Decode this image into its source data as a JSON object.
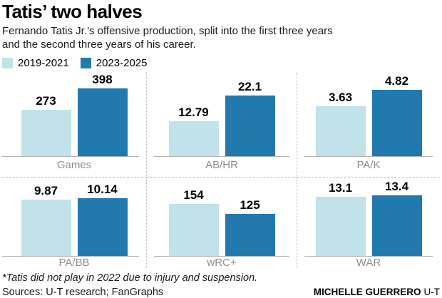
{
  "title": "Tatis’ two halves",
  "subtitle_line1": "Fernando Tatis Jr.’s offensive production, split into the first three years",
  "subtitle_line2": "and the second three years of his career.",
  "legend": [
    {
      "label": "2019-2021",
      "color": "#c0e2e8"
    },
    {
      "label": "2023-2025",
      "color": "#2179ae"
    }
  ],
  "colors": {
    "series1": "#c0e2e8",
    "series2": "#2179ae",
    "axis_line": "#b3b3b3",
    "category_label": "#8c8c8c",
    "divider": "#b8b8b8"
  },
  "chart_data": {
    "type": "bar",
    "layout": "2 rows x 3 columns of paired-bar mini charts",
    "legend_position": "top-left",
    "series_names": [
      "2019-2021",
      "2023-2025"
    ],
    "charts": [
      {
        "label": "Games",
        "values": [
          273,
          398
        ],
        "display": [
          "273",
          "398"
        ]
      },
      {
        "label": "AB/HR",
        "values": [
          12.79,
          22.1
        ],
        "display": [
          "12.79",
          "22.1"
        ]
      },
      {
        "label": "PA/K",
        "values": [
          3.63,
          4.82
        ],
        "display": [
          "3.63",
          "4.82"
        ]
      },
      {
        "label": "PA/BB",
        "values": [
          9.87,
          10.14
        ],
        "display": [
          "9.87",
          "10.14"
        ]
      },
      {
        "label": "wRC+",
        "values": [
          154,
          125
        ],
        "display": [
          "154",
          "125"
        ]
      },
      {
        "label": "WAR",
        "values": [
          13.1,
          13.4
        ],
        "display": [
          "13.1",
          "13.4"
        ]
      }
    ]
  },
  "footnote": "*Tatis did not play in 2022 due to injury and suspension.",
  "sources": "Sources: U-T research; FanGraphs",
  "credit": {
    "name": "MICHELLE GUERRERO",
    "org": "U-T"
  }
}
